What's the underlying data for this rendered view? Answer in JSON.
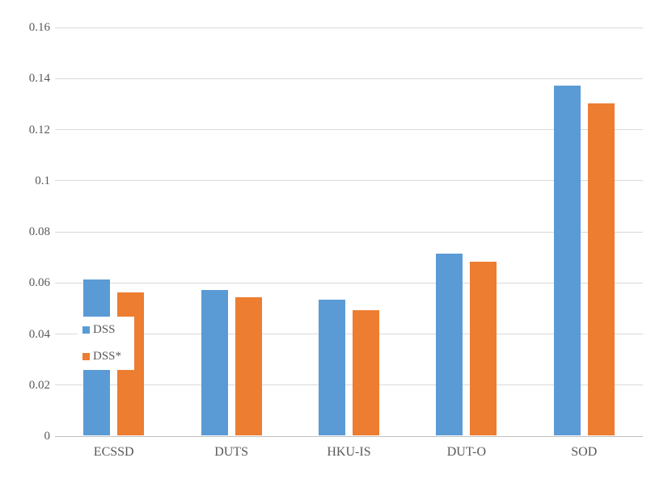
{
  "chart_data": {
    "type": "bar",
    "title": "",
    "xlabel": "",
    "ylabel": "",
    "categories": [
      "ECSSD",
      "DUTS",
      "HKU-IS",
      "DUT-O",
      "SOD"
    ],
    "series": [
      {
        "name": "DSS",
        "color": "#5B9BD5",
        "values": [
          0.061,
          0.057,
          0.053,
          0.071,
          0.137
        ]
      },
      {
        "name": "DSS*",
        "color": "#ED7D31",
        "values": [
          0.056,
          0.054,
          0.049,
          0.068,
          0.13
        ]
      }
    ],
    "ylim": [
      0,
      0.16
    ],
    "ytick_labels": [
      "0",
      "0.02",
      "0.04",
      "0.06",
      "0.08",
      "0.1",
      "0.12",
      "0.14",
      "0.16"
    ],
    "grid": "horizontal",
    "legend_position": "inside-left",
    "colors": {
      "gridline": "#d9d9d9",
      "axis_line": "#bfbfbf",
      "tick_text": "#595959",
      "background": "#ffffff"
    }
  }
}
